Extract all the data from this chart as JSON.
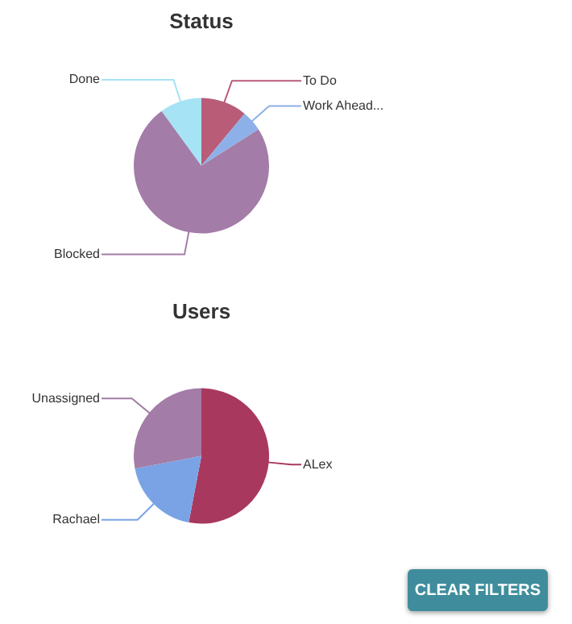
{
  "chart_data": [
    {
      "type": "pie",
      "title": "Status",
      "categories": [
        "To Do",
        "Work Ahead...",
        "Blocked",
        "Done"
      ],
      "values": [
        11,
        5,
        74,
        10
      ],
      "colors": [
        "#b85c78",
        "#8eb0e8",
        "#a37ca8",
        "#a6e3f4"
      ],
      "legend": false
    },
    {
      "type": "pie",
      "title": "Users",
      "categories": [
        "ALex",
        "Rachael",
        "Unassigned"
      ],
      "values": [
        53,
        19,
        28
      ],
      "colors": [
        "#a8385e",
        "#7aa3e5",
        "#a37ca8"
      ],
      "legend": false,
      "annotations": [
        "CLEAR FILTERS"
      ]
    }
  ]
}
